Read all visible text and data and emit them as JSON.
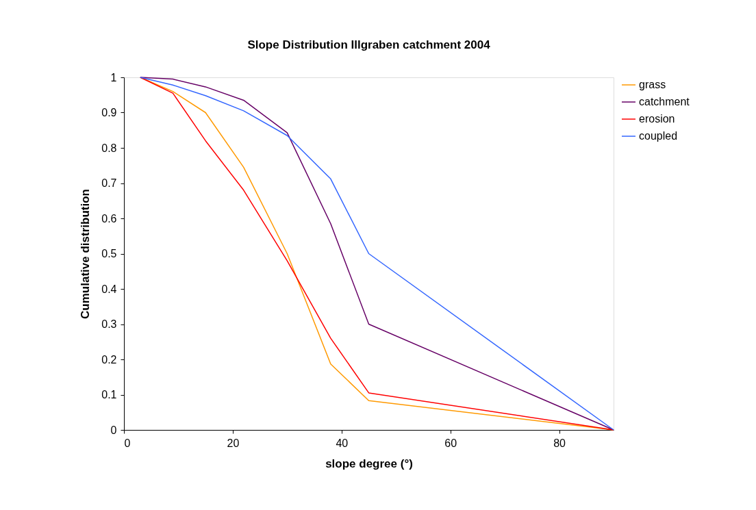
{
  "chart_data": {
    "type": "line",
    "title": "Slope Distribution Illgraben catchment 2004",
    "xlabel": "slope degree (°)",
    "ylabel": "Cumulative distribution",
    "x": [
      3,
      9,
      15,
      22,
      30,
      38,
      45,
      90
    ],
    "series": [
      {
        "name": "grass",
        "color": "#ff9900",
        "values": [
          1,
          0.96,
          0.9,
          0.745,
          0.5,
          0.187,
          0.083,
          0
        ]
      },
      {
        "name": "catchment",
        "color": "#660066",
        "values": [
          1,
          0.995,
          0.973,
          0.935,
          0.843,
          0.585,
          0.3,
          0
        ]
      },
      {
        "name": "erosion",
        "color": "#ff0000",
        "values": [
          1,
          0.955,
          0.82,
          0.68,
          0.48,
          0.26,
          0.105,
          0
        ]
      },
      {
        "name": "coupled",
        "color": "#3366ff",
        "values": [
          1,
          0.978,
          0.948,
          0.905,
          0.835,
          0.712,
          0.5,
          0
        ]
      }
    ],
    "xlim": [
      0,
      90
    ],
    "xticks": [
      0,
      20,
      40,
      60,
      80
    ],
    "ylim": [
      0,
      1
    ],
    "yticks": [
      0,
      0.1,
      0.2,
      0.3,
      0.4,
      0.5,
      0.6,
      0.7,
      0.8,
      0.9,
      1
    ],
    "grid": false,
    "legend": "right",
    "marker": "none",
    "line_style": "solid"
  }
}
